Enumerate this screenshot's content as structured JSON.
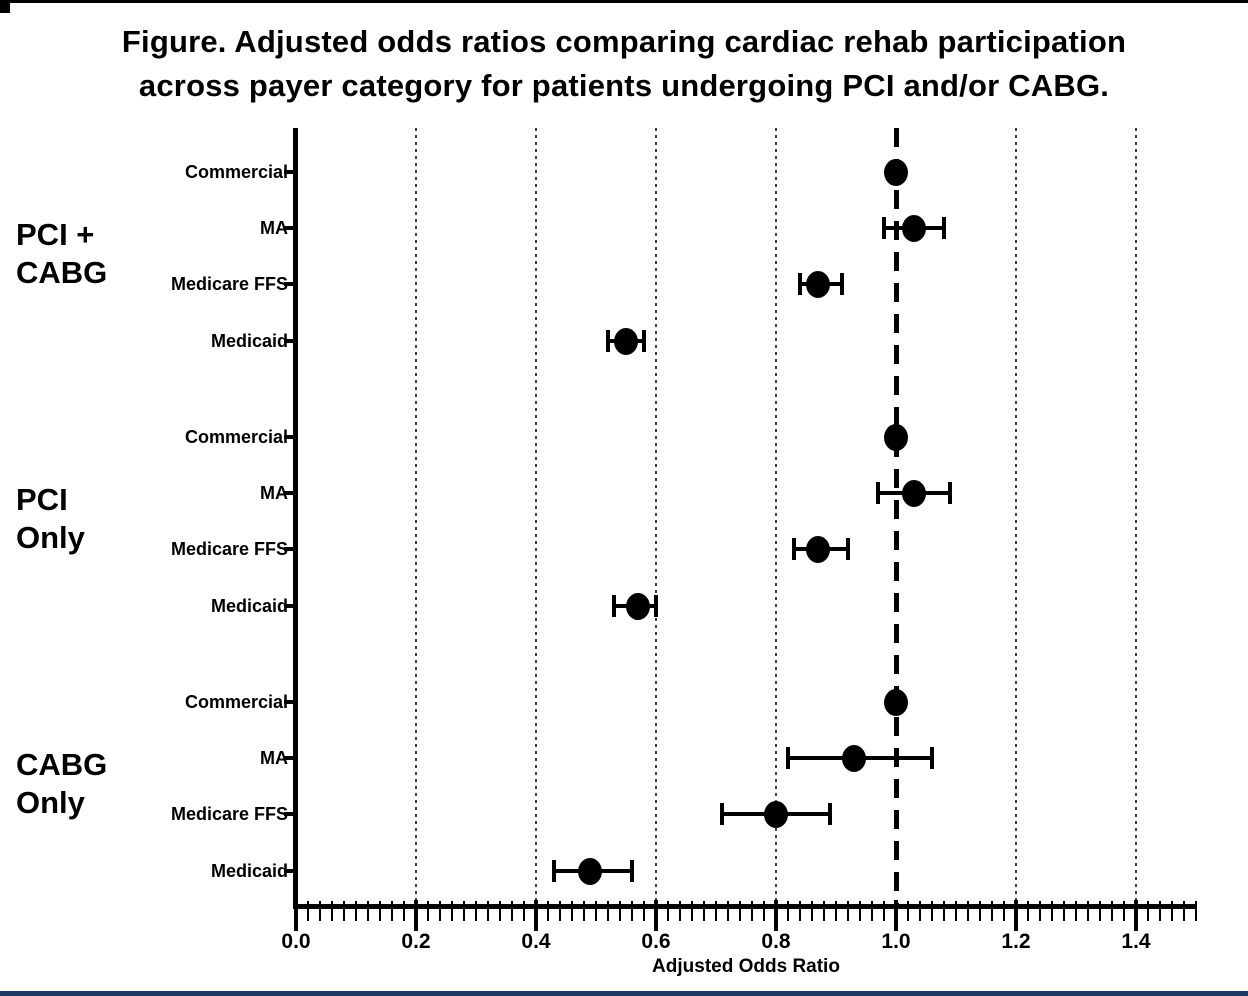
{
  "figure": {
    "title_line1": "Figure. Adjusted odds ratios comparing cardiac rehab participation",
    "title_line2": "across payer category for patients undergoing PCI and/or CABG."
  },
  "colors": {
    "ink": "#000000",
    "gridline": "#3d3d3d",
    "bottom_bar": "#1F3864"
  },
  "chart_data": {
    "type": "scatter",
    "subtype": "forest-plot",
    "title": "Figure. Adjusted odds ratios comparing cardiac rehab participation across payer category for patients undergoing PCI and/or CABG.",
    "xlabel": "Adjusted Odds Ratio",
    "ylabel": "",
    "xlim": [
      0.0,
      1.5
    ],
    "xticks": [
      0.0,
      0.2,
      0.4,
      0.6,
      0.8,
      1.0,
      1.2,
      1.4
    ],
    "xtick_labels": [
      "0.0",
      "0.2",
      "0.4",
      "0.6",
      "0.8",
      "1.0",
      "1.2",
      "1.4"
    ],
    "minor_tick_step": 0.02,
    "reference_line_x": 1.0,
    "dotted_gridlines_x": [
      0.2,
      0.4,
      0.6,
      0.8,
      1.2,
      1.4
    ],
    "grid": "dotted-vertical",
    "legend": "none",
    "marker": "filled-black-circle-with-error-bars",
    "groups": [
      {
        "label_lines": [
          "PCI +",
          "CABG"
        ],
        "rows": [
          {
            "payer": "Commercial",
            "or": 1.0,
            "ci_low": null,
            "ci_high": null
          },
          {
            "payer": "MA",
            "or": 1.03,
            "ci_low": 0.98,
            "ci_high": 1.08
          },
          {
            "payer": "Medicare FFS",
            "or": 0.87,
            "ci_low": 0.84,
            "ci_high": 0.91
          },
          {
            "payer": "Medicaid",
            "or": 0.55,
            "ci_low": 0.52,
            "ci_high": 0.58
          }
        ]
      },
      {
        "label_lines": [
          "PCI",
          "Only"
        ],
        "rows": [
          {
            "payer": "Commercial",
            "or": 1.0,
            "ci_low": null,
            "ci_high": null
          },
          {
            "payer": "MA",
            "or": 1.03,
            "ci_low": 0.97,
            "ci_high": 1.09
          },
          {
            "payer": "Medicare FFS",
            "or": 0.87,
            "ci_low": 0.83,
            "ci_high": 0.92
          },
          {
            "payer": "Medicaid",
            "or": 0.57,
            "ci_low": 0.53,
            "ci_high": 0.6
          }
        ]
      },
      {
        "label_lines": [
          "CABG",
          "Only"
        ],
        "rows": [
          {
            "payer": "Commercial",
            "or": 1.0,
            "ci_low": null,
            "ci_high": null
          },
          {
            "payer": "MA",
            "or": 0.93,
            "ci_low": 0.82,
            "ci_high": 1.06
          },
          {
            "payer": "Medicare FFS",
            "or": 0.8,
            "ci_low": 0.71,
            "ci_high": 0.89
          },
          {
            "payer": "Medicaid",
            "or": 0.49,
            "ci_low": 0.43,
            "ci_high": 0.56
          }
        ]
      }
    ]
  }
}
